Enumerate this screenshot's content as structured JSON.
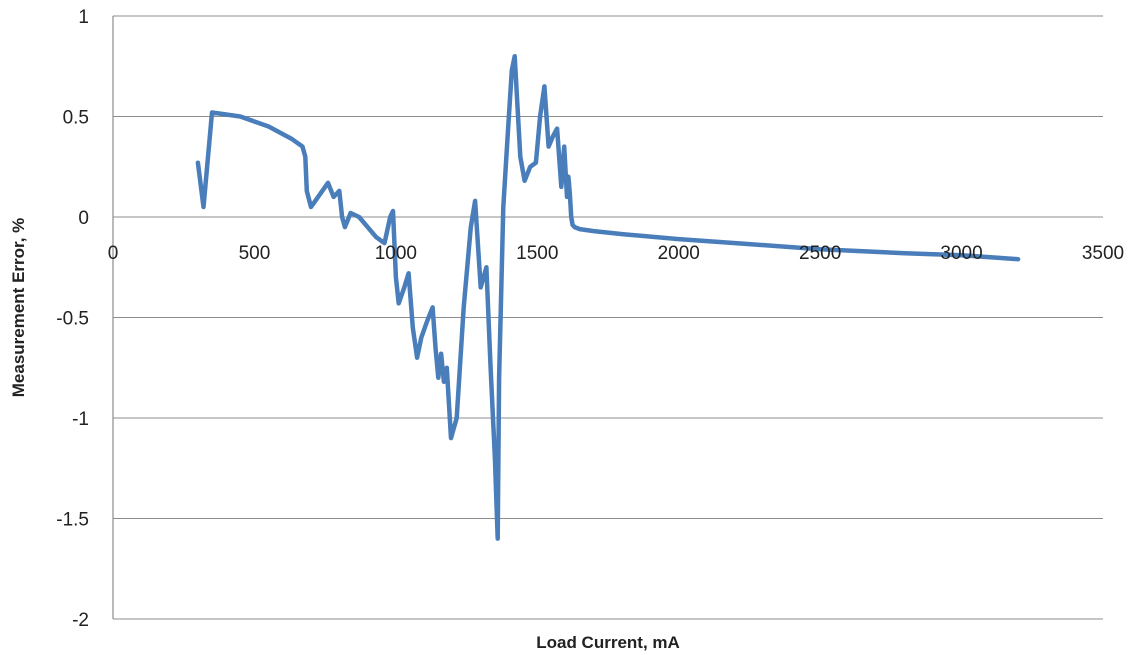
{
  "chart_data": {
    "type": "line",
    "title": "",
    "xlabel": "Load Current, mA",
    "ylabel": "Measurement Error, %",
    "xlim": [
      0,
      3500
    ],
    "ylim": [
      -2,
      1
    ],
    "x_ticks": [
      0,
      500,
      1000,
      1500,
      2000,
      2500,
      3000,
      3500
    ],
    "x_tick_labels": [
      "0",
      "500",
      "1000",
      "1500",
      "2000",
      "2500",
      "3000",
      "3500"
    ],
    "y_ticks": [
      1,
      0.5,
      0,
      -0.5,
      -1,
      -1.5,
      -2
    ],
    "y_tick_labels": [
      "1",
      "0.5",
      "0",
      "-0.5",
      "-1",
      "-1.5",
      "-2"
    ],
    "grid": "horizontal",
    "legend": "none",
    "series": [
      {
        "color": "#4a7ebb",
        "x": [
          300,
          320,
          350,
          450,
          550,
          630,
          670,
          680,
          685,
          700,
          740,
          760,
          780,
          800,
          810,
          820,
          840,
          870,
          900,
          930,
          960,
          980,
          990,
          1000,
          1010,
          1030,
          1045,
          1060,
          1075,
          1090,
          1110,
          1130,
          1140,
          1150,
          1160,
          1170,
          1180,
          1195,
          1215,
          1240,
          1265,
          1280,
          1300,
          1320,
          1335,
          1350,
          1360,
          1365,
          1380,
          1395,
          1410,
          1420,
          1430,
          1440,
          1455,
          1475,
          1495,
          1510,
          1525,
          1540,
          1555,
          1570,
          1585,
          1595,
          1605,
          1610,
          1615,
          1620,
          1625,
          1632,
          1650,
          1700,
          1800,
          2000,
          2200,
          2500,
          2800,
          3000,
          3200
        ],
        "y": [
          0.27,
          0.05,
          0.52,
          0.5,
          0.45,
          0.39,
          0.35,
          0.3,
          0.13,
          0.05,
          0.13,
          0.17,
          0.1,
          0.13,
          0.0,
          -0.05,
          0.02,
          0.0,
          -0.05,
          -0.1,
          -0.13,
          0.0,
          0.03,
          -0.3,
          -0.43,
          -0.35,
          -0.28,
          -0.55,
          -0.7,
          -0.6,
          -0.52,
          -0.45,
          -0.65,
          -0.8,
          -0.68,
          -0.82,
          -0.75,
          -1.1,
          -1.0,
          -0.45,
          -0.05,
          0.08,
          -0.35,
          -0.25,
          -0.75,
          -1.2,
          -1.6,
          -0.8,
          0.05,
          0.4,
          0.73,
          0.8,
          0.55,
          0.3,
          0.18,
          0.25,
          0.27,
          0.5,
          0.65,
          0.35,
          0.4,
          0.44,
          0.15,
          0.35,
          0.1,
          0.2,
          0.12,
          0.0,
          -0.04,
          -0.05,
          -0.06,
          -0.07,
          -0.085,
          -0.11,
          -0.13,
          -0.16,
          -0.18,
          -0.19,
          -0.21
        ]
      }
    ]
  }
}
